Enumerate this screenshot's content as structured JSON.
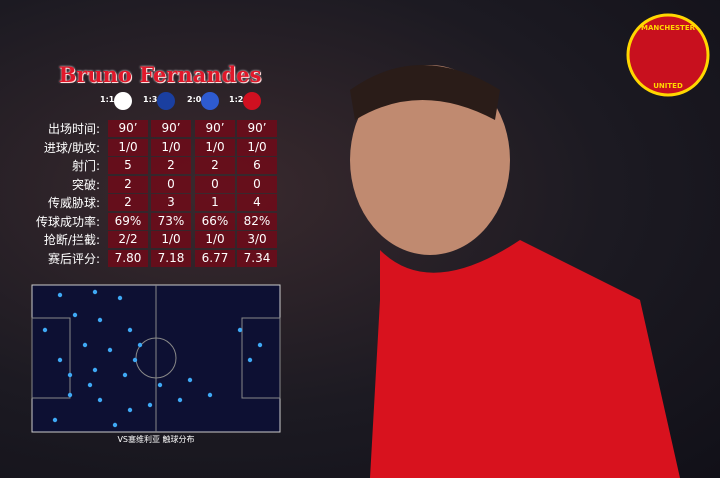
{
  "title": "Bruno Fernandes",
  "logo": {
    "top": "MANCHESTER",
    "bottom": "UNITED"
  },
  "table": {
    "scores": [
      "1:1",
      "1:3",
      "2:0",
      "1:2"
    ],
    "rows": [
      {
        "label": "出场时间:",
        "values": [
          "90’",
          "90’",
          "90’",
          "90’"
        ]
      },
      {
        "label": "进球/助攻:",
        "values": [
          "1/0",
          "1/0",
          "1/0",
          "1/0"
        ]
      },
      {
        "label": "射门:",
        "values": [
          "5",
          "2",
          "2",
          "6"
        ]
      },
      {
        "label": "突破:",
        "values": [
          "2",
          "0",
          "0",
          "0"
        ]
      },
      {
        "label": "传威胁球:",
        "values": [
          "2",
          "3",
          "1",
          "4"
        ]
      },
      {
        "label": "传球成功率:",
        "values": [
          "69%",
          "73%",
          "66%",
          "82%"
        ]
      },
      {
        "label": "抢断/拦截:",
        "values": [
          "2/2",
          "1/0",
          "1/0",
          "3/0"
        ]
      },
      {
        "label": "赛后评分:",
        "values": [
          "7.80",
          "7.18",
          "6.77",
          "7.34"
        ]
      }
    ]
  },
  "pitch": {
    "caption": "VS塞维利亚 触球分布"
  }
}
